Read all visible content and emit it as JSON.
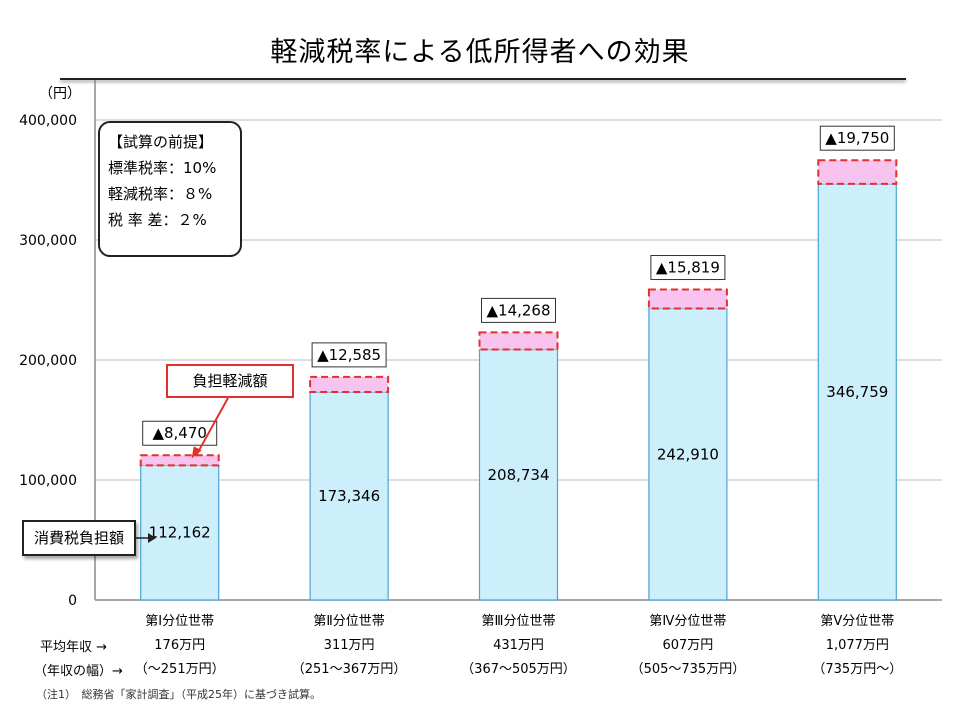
{
  "title": "軽減税率による低所得者への効果",
  "chart_data": {
    "type": "bar",
    "unit_label": "（円）",
    "ylim": [
      0,
      400000
    ],
    "yticks": [
      0,
      100000,
      200000,
      300000,
      400000
    ],
    "ytick_labels": [
      "0",
      "100,000",
      "200,000",
      "300,000",
      "400,000"
    ],
    "grid": true,
    "categories": [
      "第Ⅰ分位世帯",
      "第Ⅱ分位世帯",
      "第Ⅲ分位世帯",
      "第Ⅳ分位世帯",
      "第Ⅴ分位世帯"
    ],
    "series": [
      {
        "name": "消費税負担額",
        "values": [
          112162,
          173346,
          208734,
          242910,
          346759
        ],
        "labels": [
          "112,162",
          "173,346",
          "208,734",
          "242,910",
          "346,759"
        ],
        "color": "#cdeefb"
      },
      {
        "name": "負担軽減額",
        "values": [
          8470,
          12585,
          14268,
          15819,
          19750
        ],
        "labels": [
          "▲8,470",
          "▲12,585",
          "▲14,268",
          "▲15,819",
          "▲19,750"
        ],
        "color": "#f8c3ef"
      }
    ],
    "income_row_label": "平均年収 →",
    "income_values": [
      "176万円",
      "311万円",
      "431万円",
      "607万円",
      "1,077万円"
    ],
    "range_row_label": "（年収の幅）→",
    "range_values": [
      "（〜251万円）",
      "（251〜367万円）",
      "（367〜505万円）",
      "（505〜735万円）",
      "（735万円〜）"
    ]
  },
  "assumptions": {
    "heading": "【試算の前提】",
    "lines": [
      "標準税率：10%",
      "軽減税率：８%",
      "税 率 差：２%"
    ]
  },
  "callouts": {
    "reduction": "負担軽減額",
    "burden": "消費税負担額"
  },
  "footnote": "（注1）　総務省「家計調査」（平成25年）に基づき試算。",
  "colors": {
    "bar_fill": "#cdeefb",
    "bar_edge": "#4aa3d8",
    "reduction_fill": "#f8c3ef",
    "reduction_edge": "#e2302d"
  }
}
